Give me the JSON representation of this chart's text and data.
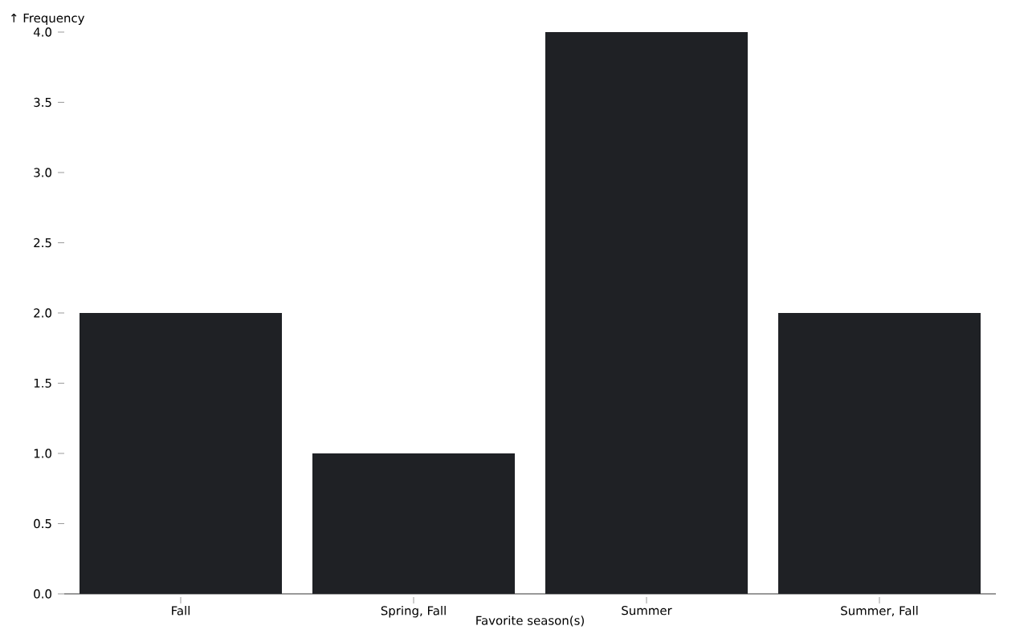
{
  "chart_data": {
    "type": "bar",
    "xlabel": "Favorite season(s)",
    "ylabel": "↑ Frequency",
    "categories": [
      "Fall",
      "Spring, Fall",
      "Summer",
      "Summer, Fall"
    ],
    "values": [
      2,
      1,
      4,
      2
    ],
    "color": "#1f2125",
    "ylim": [
      0,
      4
    ],
    "yticks": [
      {
        "value": 0,
        "label": "0.0"
      },
      {
        "value": 0.5,
        "label": "0.5"
      },
      {
        "value": 1,
        "label": "1.0"
      },
      {
        "value": 1.5,
        "label": "1.5"
      },
      {
        "value": 2,
        "label": "2.0"
      },
      {
        "value": 2.5,
        "label": "2.5"
      },
      {
        "value": 3,
        "label": "3.0"
      },
      {
        "value": 3.5,
        "label": "3.5"
      },
      {
        "value": 4,
        "label": "4.0"
      }
    ]
  }
}
